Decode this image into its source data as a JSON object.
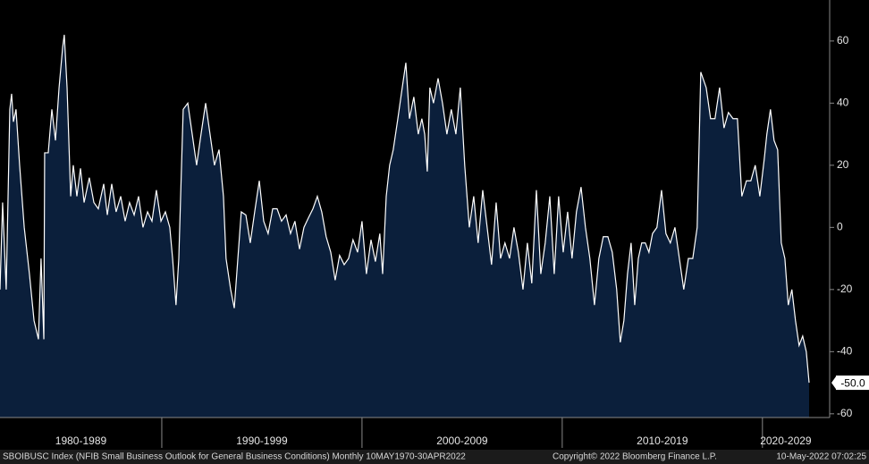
{
  "chart_data": {
    "type": "area",
    "x": [
      1981.92,
      1982.05,
      1982.23,
      1982.41,
      1982.5,
      1982.59,
      1982.72,
      1982.9,
      1983.13,
      1983.39,
      1983.62,
      1983.84,
      1983.97,
      1984.11,
      1984.15,
      1984.33,
      1984.51,
      1984.69,
      1984.87,
      1985.05,
      1985.13,
      1985.27,
      1985.45,
      1985.58,
      1985.76,
      1985.94,
      1986.12,
      1986.38,
      1986.61,
      1986.83,
      1987.1,
      1987.28,
      1987.5,
      1987.72,
      1987.95,
      1988.17,
      1988.39,
      1988.62,
      1988.84,
      1989.06,
      1989.29,
      1989.51,
      1989.73,
      1989.96,
      1990.18,
      1990.4,
      1990.54,
      1990.71,
      1990.85,
      1991.07,
      1991.3,
      1991.52,
      1991.74,
      1991.96,
      1992.19,
      1992.41,
      1992.63,
      1992.86,
      1993.08,
      1993.21,
      1993.44,
      1993.62,
      1993.8,
      1993.97,
      1994.2,
      1994.42,
      1994.64,
      1994.87,
      1995.09,
      1995.31,
      1995.54,
      1995.76,
      1995.98,
      1996.21,
      1996.43,
      1996.65,
      1996.88,
      1997.1,
      1997.32,
      1997.55,
      1997.77,
      1997.99,
      1998.21,
      1998.44,
      1998.66,
      1998.88,
      1999.11,
      1999.33,
      1999.55,
      1999.78,
      2000.0,
      2000.22,
      2000.45,
      2000.67,
      2000.89,
      2001.03,
      2001.21,
      2001.38,
      2001.56,
      2001.79,
      2002.01,
      2002.19,
      2002.37,
      2002.59,
      2002.81,
      2002.99,
      2003.13,
      2003.26,
      2003.39,
      2003.57,
      2003.8,
      2004.02,
      2004.24,
      2004.46,
      2004.69,
      2004.91,
      2005.13,
      2005.36,
      2005.58,
      2005.8,
      2006.03,
      2006.25,
      2006.47,
      2006.7,
      2006.92,
      2007.14,
      2007.37,
      2007.59,
      2007.81,
      2008.04,
      2008.26,
      2008.48,
      2008.71,
      2008.93,
      2009.15,
      2009.38,
      2009.6,
      2009.82,
      2010.05,
      2010.27,
      2010.49,
      2010.71,
      2010.94,
      2011.16,
      2011.38,
      2011.61,
      2011.83,
      2012.05,
      2012.28,
      2012.5,
      2012.72,
      2012.9,
      2013.08,
      2013.26,
      2013.44,
      2013.62,
      2013.8,
      2013.97,
      2014.15,
      2014.33,
      2014.51,
      2014.73,
      2014.96,
      2015.18,
      2015.4,
      2015.63,
      2015.85,
      2016.07,
      2016.3,
      2016.52,
      2016.74,
      2016.92,
      2017.19,
      2017.41,
      2017.63,
      2017.86,
      2018.08,
      2018.3,
      2018.53,
      2018.75,
      2018.97,
      2019.2,
      2019.42,
      2019.64,
      2019.87,
      2020.09,
      2020.22,
      2020.4,
      2020.58,
      2020.76,
      2020.94,
      2021.12,
      2021.29,
      2021.47,
      2021.65,
      2021.83,
      2022.01,
      2022.19,
      2022.33
    ],
    "values": [
      -20,
      8,
      -20,
      38,
      43,
      34,
      38,
      20,
      0,
      -15,
      -30,
      -36,
      -10,
      -36,
      24,
      24,
      38,
      28,
      45,
      58,
      62,
      45,
      10,
      20,
      10,
      19,
      8,
      16,
      8,
      6,
      14,
      4,
      14,
      5,
      10,
      2,
      8,
      4,
      10,
      0,
      5,
      2,
      12,
      2,
      5,
      0,
      -10,
      -25,
      -10,
      38,
      40,
      30,
      20,
      30,
      40,
      30,
      20,
      25,
      10,
      -10,
      -20,
      -26,
      -10,
      5,
      4,
      -5,
      5,
      15,
      2,
      -2,
      6,
      6,
      2,
      4,
      -2,
      2,
      -7,
      0,
      3,
      6,
      10,
      5,
      -3,
      -8,
      -17,
      -9,
      -12,
      -10,
      -4,
      -8,
      2,
      -15,
      -4,
      -11,
      -2,
      -15,
      10,
      20,
      25,
      35,
      45,
      53,
      35,
      42,
      30,
      35,
      30,
      18,
      45,
      40,
      48,
      40,
      30,
      38,
      30,
      45,
      20,
      0,
      10,
      -5,
      12,
      0,
      -12,
      8,
      -10,
      -5,
      -10,
      0,
      -8,
      -20,
      -5,
      -18,
      12,
      -15,
      -5,
      10,
      -15,
      10,
      -8,
      5,
      -10,
      5,
      13,
      0,
      -10,
      -25,
      -10,
      -3,
      -3,
      -8,
      -20,
      -37,
      -30,
      -15,
      -5,
      -25,
      -10,
      -5,
      -5,
      -8,
      -2,
      0,
      12,
      -2,
      -5,
      0,
      -10,
      -20,
      -10,
      -10,
      0,
      50,
      45,
      35,
      35,
      45,
      32,
      37,
      35,
      35,
      10,
      15,
      15,
      20,
      10,
      22,
      30,
      38,
      28,
      25,
      -5,
      -10,
      -25,
      -20,
      -30,
      -38,
      -35,
      -40,
      -50
    ],
    "last_label": "-50.0",
    "color": "#ffffff",
    "fill": "#0b1f3b",
    "xlim": [
      1981.92,
      2022.33
    ],
    "xticks": [
      {
        "value": 1980,
        "label": "1980-1989"
      },
      {
        "value": 1990,
        "label": "1990-1999"
      },
      {
        "value": 2000,
        "label": "2000-2009"
      },
      {
        "value": 2010,
        "label": "2010-2019"
      },
      {
        "value": 2020,
        "label": "2020-2029"
      }
    ],
    "ylim": [
      -61.2,
      73.2
    ],
    "yticks": [
      60,
      40,
      20,
      0,
      -20,
      -40,
      -60
    ],
    "footer_left": "SBOIBUSC Index (NFIB Small Business Outlook for General Business Conditions)  Monthly 10MAY1970-30APR2022",
    "footer_mid": "Copyright© 2022 Bloomberg Finance L.P.",
    "footer_right": "10-May-2022 07:02:25"
  }
}
